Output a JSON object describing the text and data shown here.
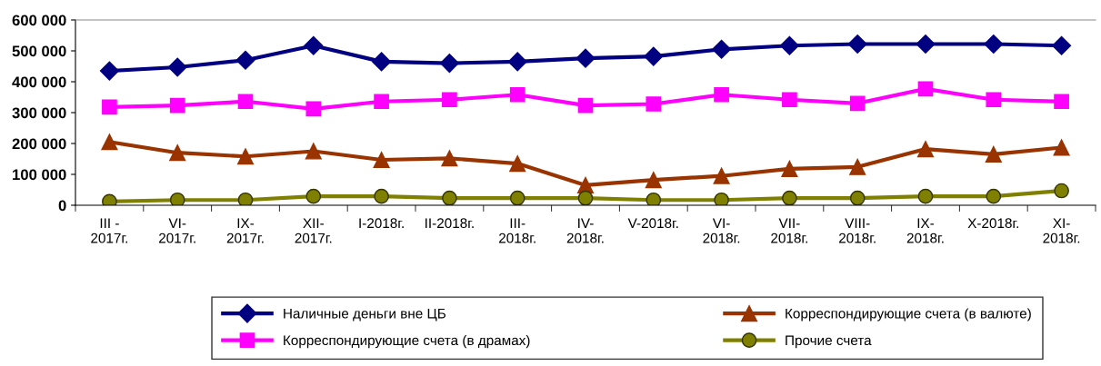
{
  "chart_data": {
    "type": "line",
    "categories": [
      "III -\n2017г.",
      "VI-\n2017г.",
      "IX-\n2017г.",
      "XII-\n2017г.",
      "I-2018г.",
      "II-2018г.",
      "III-\n2018г.",
      "IV-\n2018г.",
      "V-2018г.",
      "VI-\n2018г.",
      "VII-\n2018г.",
      "VIII-\n2018г.",
      "IX-\n2018г.",
      "X-2018г.",
      "XI-\n2018г."
    ],
    "series": [
      {
        "name": "Наличные деньги вне ЦБ",
        "color": "#000080",
        "marker": "diamond",
        "values": [
          435000,
          447000,
          470000,
          517000,
          465000,
          460000,
          465000,
          476000,
          482000,
          505000,
          517000,
          522000,
          522000,
          522000,
          517000
        ]
      },
      {
        "name": "Корреспондирующие счета (в драмах)",
        "color": "#ff00ff",
        "marker": "square",
        "values": [
          318000,
          323000,
          336000,
          312000,
          336000,
          342000,
          358000,
          323000,
          328000,
          358000,
          342000,
          330000,
          377000,
          342000,
          336000
        ]
      },
      {
        "name": "Корреспондирующие счета (в валюте)",
        "color": "#993300",
        "marker": "triangle",
        "values": [
          205000,
          170000,
          158000,
          175000,
          147000,
          152000,
          135000,
          65000,
          82000,
          95000,
          118000,
          124000,
          182000,
          165000,
          187000
        ]
      },
      {
        "name": "Прочие счета",
        "color": "#808000",
        "marker": "circle",
        "values": [
          12000,
          17000,
          17000,
          29000,
          29000,
          23000,
          23000,
          23000,
          17000,
          17000,
          23000,
          23000,
          29000,
          29000,
          47000
        ]
      }
    ],
    "ylim": [
      0,
      600000
    ],
    "yticks": [
      {
        "value": 0,
        "label": "0"
      },
      {
        "value": 100000,
        "label": "100 000"
      },
      {
        "value": 200000,
        "label": "200 000"
      },
      {
        "value": 300000,
        "label": "300 000"
      },
      {
        "value": 400000,
        "label": "400 000"
      },
      {
        "value": 500000,
        "label": "500 000"
      },
      {
        "value": 600000,
        "label": "600 000"
      }
    ],
    "grid": false,
    "legend": "bottom",
    "line_style": "solid"
  }
}
